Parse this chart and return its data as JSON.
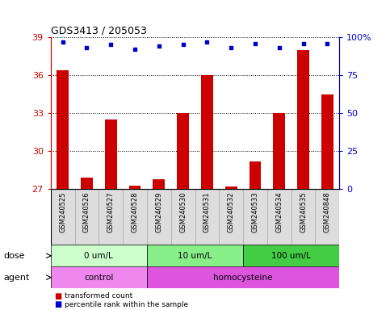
{
  "title": "GDS3413 / 205053",
  "samples": [
    "GSM240525",
    "GSM240526",
    "GSM240527",
    "GSM240528",
    "GSM240529",
    "GSM240530",
    "GSM240531",
    "GSM240532",
    "GSM240533",
    "GSM240534",
    "GSM240535",
    "GSM240848"
  ],
  "transformed_count": [
    36.4,
    27.9,
    32.5,
    27.3,
    27.8,
    33.0,
    36.0,
    27.2,
    29.2,
    33.0,
    38.0,
    34.5
  ],
  "percentile_rank": [
    97,
    93,
    95,
    92,
    94,
    95,
    97,
    93,
    96,
    93,
    96,
    96
  ],
  "ylim_left": [
    27,
    39
  ],
  "ylim_right": [
    0,
    100
  ],
  "yticks_left": [
    27,
    30,
    33,
    36,
    39
  ],
  "yticks_right": [
    0,
    25,
    50,
    75,
    100
  ],
  "bar_color": "#cc0000",
  "dot_color": "#0000cc",
  "dose_groups": [
    {
      "label": "0 um/L",
      "start": 0,
      "end": 4,
      "color": "#ccffcc"
    },
    {
      "label": "10 um/L",
      "start": 4,
      "end": 8,
      "color": "#88ee88"
    },
    {
      "label": "100 um/L",
      "start": 8,
      "end": 12,
      "color": "#44cc44"
    }
  ],
  "agent_groups": [
    {
      "label": "control",
      "start": 0,
      "end": 4,
      "color": "#ee88ee"
    },
    {
      "label": "homocysteine",
      "start": 4,
      "end": 12,
      "color": "#dd55dd"
    }
  ],
  "legend_bar_label": "transformed count",
  "legend_dot_label": "percentile rank within the sample",
  "xlabel_dose": "dose",
  "xlabel_agent": "agent",
  "left_axis_color": "#cc0000",
  "right_axis_color": "#0000cc",
  "label_box_color": "#dddddd",
  "label_box_edge": "#aaaaaa"
}
